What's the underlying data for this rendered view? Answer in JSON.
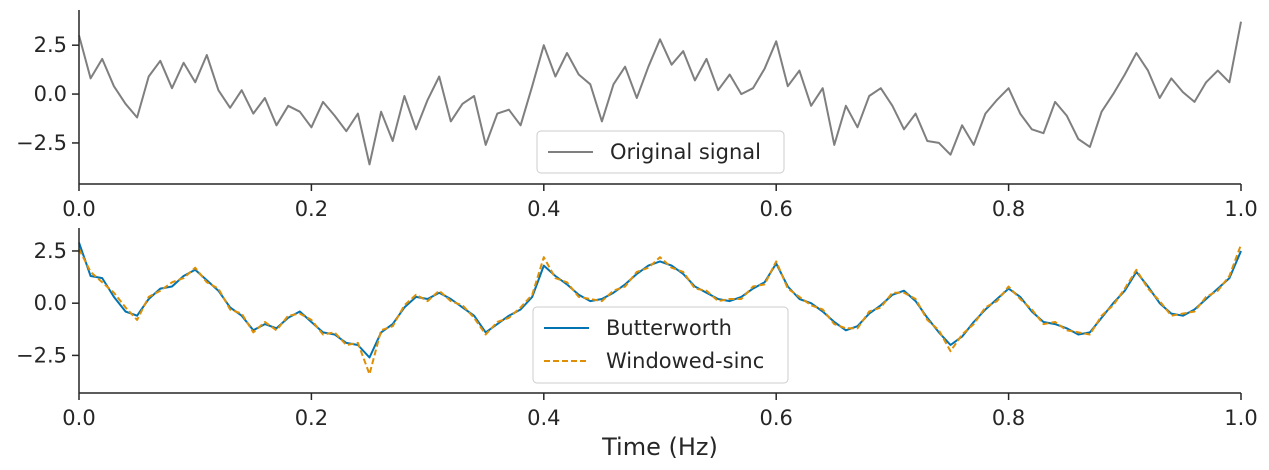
{
  "chart_data": [
    {
      "type": "line",
      "title": "",
      "xlabel": "",
      "ylabel": "",
      "xlim": [
        0.0,
        1.0
      ],
      "ylim": [
        -4.6,
        4.3
      ],
      "xticks": [
        "0.0",
        "0.2",
        "0.4",
        "0.6",
        "0.8",
        "1.0"
      ],
      "yticks": [
        "2.5",
        "0.0",
        "−2.5"
      ],
      "grid": false,
      "legend_position": "lower center",
      "series": [
        {
          "name": "Original signal",
          "color": "#7f7f7f",
          "style": "solid",
          "x": [
            0.0,
            0.01,
            0.02,
            0.03,
            0.04,
            0.05,
            0.06,
            0.07,
            0.08,
            0.09,
            0.1,
            0.11,
            0.12,
            0.13,
            0.14,
            0.15,
            0.16,
            0.17,
            0.18,
            0.19,
            0.2,
            0.21,
            0.22,
            0.23,
            0.24,
            0.25,
            0.26,
            0.27,
            0.28,
            0.29,
            0.3,
            0.31,
            0.32,
            0.33,
            0.34,
            0.35,
            0.36,
            0.37,
            0.38,
            0.39,
            0.4,
            0.41,
            0.42,
            0.43,
            0.44,
            0.45,
            0.46,
            0.47,
            0.48,
            0.49,
            0.5,
            0.51,
            0.52,
            0.53,
            0.54,
            0.55,
            0.56,
            0.57,
            0.58,
            0.59,
            0.6,
            0.61,
            0.62,
            0.63,
            0.64,
            0.65,
            0.66,
            0.67,
            0.68,
            0.69,
            0.7,
            0.71,
            0.72,
            0.73,
            0.74,
            0.75,
            0.76,
            0.77,
            0.78,
            0.79,
            0.8,
            0.81,
            0.82,
            0.83,
            0.84,
            0.85,
            0.86,
            0.87,
            0.88,
            0.89,
            0.9,
            0.91,
            0.92,
            0.93,
            0.94,
            0.95,
            0.96,
            0.97,
            0.98,
            0.99,
            1.0
          ],
          "values": [
            3.0,
            0.8,
            1.8,
            0.4,
            -0.5,
            -1.2,
            0.9,
            1.7,
            0.3,
            1.6,
            0.6,
            2.0,
            0.2,
            -0.7,
            0.2,
            -1.0,
            -0.2,
            -1.6,
            -0.6,
            -0.9,
            -1.7,
            -0.4,
            -1.1,
            -1.9,
            -1.0,
            -3.6,
            -0.9,
            -2.4,
            -0.1,
            -1.8,
            -0.3,
            0.9,
            -1.4,
            -0.5,
            -0.1,
            -2.6,
            -1.0,
            -0.8,
            -1.6,
            0.4,
            2.5,
            0.9,
            2.1,
            1.0,
            0.5,
            -1.4,
            0.5,
            1.4,
            -0.2,
            1.4,
            2.8,
            1.5,
            2.2,
            0.7,
            1.8,
            0.2,
            1.0,
            0.0,
            0.3,
            1.3,
            2.7,
            0.4,
            1.2,
            -0.6,
            0.3,
            -2.6,
            -0.6,
            -1.7,
            -0.1,
            0.3,
            -0.6,
            -1.8,
            -1.0,
            -2.4,
            -2.5,
            -3.1,
            -1.6,
            -2.6,
            -1.0,
            -0.3,
            0.3,
            -1.0,
            -1.8,
            -2.0,
            -0.4,
            -1.1,
            -2.3,
            -2.7,
            -0.9,
            0.0,
            1.0,
            2.1,
            1.2,
            -0.2,
            0.8,
            0.1,
            -0.4,
            0.6,
            1.2,
            0.6,
            3.7
          ]
        }
      ]
    },
    {
      "type": "line",
      "title": "",
      "xlabel": "Time (Hz)",
      "ylabel": "",
      "xlim": [
        0.0,
        1.0
      ],
      "ylim": [
        -4.3,
        3.6
      ],
      "xticks": [
        "0.0",
        "0.2",
        "0.4",
        "0.6",
        "0.8",
        "1.0"
      ],
      "yticks": [
        "2.5",
        "0.0",
        "−2.5"
      ],
      "grid": false,
      "legend_position": "lower center",
      "series": [
        {
          "name": "Butterworth",
          "color": "#0173b2",
          "style": "solid",
          "x": [
            0.0,
            0.01,
            0.02,
            0.03,
            0.04,
            0.05,
            0.06,
            0.07,
            0.08,
            0.09,
            0.1,
            0.11,
            0.12,
            0.13,
            0.14,
            0.15,
            0.16,
            0.17,
            0.18,
            0.19,
            0.2,
            0.21,
            0.22,
            0.23,
            0.24,
            0.25,
            0.26,
            0.27,
            0.28,
            0.29,
            0.3,
            0.31,
            0.32,
            0.33,
            0.34,
            0.35,
            0.36,
            0.37,
            0.38,
            0.39,
            0.4,
            0.41,
            0.42,
            0.43,
            0.44,
            0.45,
            0.46,
            0.47,
            0.48,
            0.49,
            0.5,
            0.51,
            0.52,
            0.53,
            0.54,
            0.55,
            0.56,
            0.57,
            0.58,
            0.59,
            0.6,
            0.61,
            0.62,
            0.63,
            0.64,
            0.65,
            0.66,
            0.67,
            0.68,
            0.69,
            0.7,
            0.71,
            0.72,
            0.73,
            0.74,
            0.75,
            0.76,
            0.77,
            0.78,
            0.79,
            0.8,
            0.81,
            0.82,
            0.83,
            0.84,
            0.85,
            0.86,
            0.87,
            0.88,
            0.89,
            0.9,
            0.91,
            0.92,
            0.93,
            0.94,
            0.95,
            0.96,
            0.97,
            0.98,
            0.99,
            1.0
          ],
          "values": [
            2.9,
            1.3,
            1.2,
            0.3,
            -0.4,
            -0.6,
            0.2,
            0.7,
            0.8,
            1.3,
            1.6,
            1.1,
            0.6,
            -0.2,
            -0.6,
            -1.3,
            -1.0,
            -1.2,
            -0.7,
            -0.4,
            -0.9,
            -1.4,
            -1.5,
            -1.9,
            -2.0,
            -2.6,
            -1.4,
            -1.0,
            -0.2,
            0.3,
            0.2,
            0.5,
            0.2,
            -0.2,
            -0.6,
            -1.4,
            -1.0,
            -0.6,
            -0.3,
            0.3,
            1.8,
            1.3,
            0.9,
            0.4,
            0.1,
            0.2,
            0.5,
            0.9,
            1.4,
            1.8,
            2.0,
            1.8,
            1.4,
            0.8,
            0.5,
            0.2,
            0.1,
            0.3,
            0.7,
            1.0,
            1.9,
            0.8,
            0.2,
            0.0,
            -0.4,
            -0.9,
            -1.3,
            -1.1,
            -0.5,
            -0.1,
            0.4,
            0.6,
            0.1,
            -0.7,
            -1.4,
            -2.0,
            -1.6,
            -0.9,
            -0.3,
            0.2,
            0.7,
            0.3,
            -0.4,
            -0.9,
            -1.0,
            -1.2,
            -1.5,
            -1.4,
            -0.7,
            0.0,
            0.6,
            1.5,
            0.8,
            0.0,
            -0.5,
            -0.6,
            -0.3,
            0.2,
            0.7,
            1.2,
            2.5
          ]
        },
        {
          "name": "Windowed-sinc",
          "color": "#de8f05",
          "style": "dashed",
          "x": [
            0.0,
            0.01,
            0.02,
            0.03,
            0.04,
            0.05,
            0.06,
            0.07,
            0.08,
            0.09,
            0.1,
            0.11,
            0.12,
            0.13,
            0.14,
            0.15,
            0.16,
            0.17,
            0.18,
            0.19,
            0.2,
            0.21,
            0.22,
            0.23,
            0.24,
            0.25,
            0.26,
            0.27,
            0.28,
            0.29,
            0.3,
            0.31,
            0.32,
            0.33,
            0.34,
            0.35,
            0.36,
            0.37,
            0.38,
            0.39,
            0.4,
            0.41,
            0.42,
            0.43,
            0.44,
            0.45,
            0.46,
            0.47,
            0.48,
            0.49,
            0.5,
            0.51,
            0.52,
            0.53,
            0.54,
            0.55,
            0.56,
            0.57,
            0.58,
            0.59,
            0.6,
            0.61,
            0.62,
            0.63,
            0.64,
            0.65,
            0.66,
            0.67,
            0.68,
            0.69,
            0.7,
            0.71,
            0.72,
            0.73,
            0.74,
            0.75,
            0.76,
            0.77,
            0.78,
            0.79,
            0.8,
            0.81,
            0.82,
            0.83,
            0.84,
            0.85,
            0.86,
            0.87,
            0.88,
            0.89,
            0.9,
            0.91,
            0.92,
            0.93,
            0.94,
            0.95,
            0.96,
            0.97,
            0.98,
            0.99,
            1.0
          ],
          "values": [
            2.6,
            1.5,
            1.0,
            0.5,
            -0.2,
            -0.8,
            0.3,
            0.6,
            1.0,
            1.2,
            1.7,
            1.0,
            0.7,
            -0.3,
            -0.5,
            -1.4,
            -0.9,
            -1.3,
            -0.6,
            -0.5,
            -0.8,
            -1.5,
            -1.4,
            -2.0,
            -1.9,
            -3.4,
            -1.3,
            -1.1,
            -0.1,
            0.4,
            0.1,
            0.6,
            0.1,
            -0.1,
            -0.7,
            -1.5,
            -0.9,
            -0.7,
            -0.2,
            0.4,
            2.2,
            1.2,
            1.0,
            0.3,
            0.2,
            0.1,
            0.6,
            0.8,
            1.5,
            1.7,
            2.2,
            1.7,
            1.5,
            0.7,
            0.6,
            0.1,
            0.2,
            0.2,
            0.8,
            0.9,
            2.0,
            0.7,
            0.3,
            -0.1,
            -0.3,
            -1.0,
            -1.2,
            -1.2,
            -0.4,
            -0.2,
            0.5,
            0.5,
            0.2,
            -0.8,
            -1.3,
            -2.3,
            -1.5,
            -1.0,
            -0.2,
            0.1,
            0.8,
            0.2,
            -0.3,
            -1.0,
            -0.9,
            -1.3,
            -1.4,
            -1.5,
            -0.6,
            -0.1,
            0.7,
            1.6,
            0.7,
            0.1,
            -0.6,
            -0.5,
            -0.4,
            0.3,
            0.6,
            1.3,
            2.8
          ]
        }
      ]
    }
  ]
}
